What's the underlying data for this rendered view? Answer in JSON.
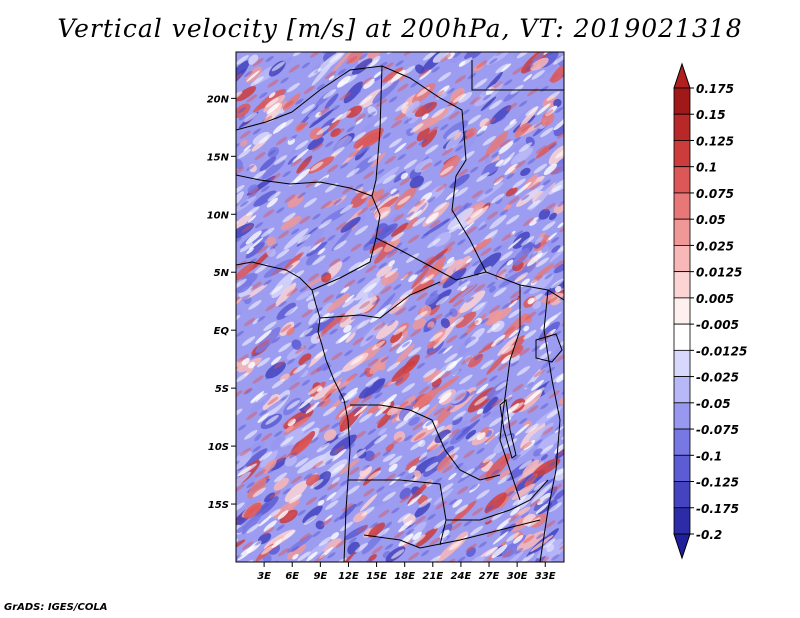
{
  "title": "Vertical velocity [m/s] at 200hPa, VT: 2019021318",
  "footer": "GrADS: IGES/COLA",
  "map": {
    "lon_range": [
      0,
      35
    ],
    "lat_range": [
      -20,
      24
    ],
    "lat_ticks": [
      {
        "value": 20,
        "label": "20N"
      },
      {
        "value": 15,
        "label": "15N"
      },
      {
        "value": 10,
        "label": "10N"
      },
      {
        "value": 5,
        "label": "5N"
      },
      {
        "value": 0,
        "label": "EQ"
      },
      {
        "value": -5,
        "label": "5S"
      },
      {
        "value": -10,
        "label": "10S"
      },
      {
        "value": -15,
        "label": "15S"
      }
    ],
    "lon_ticks": [
      {
        "value": 3,
        "label": "3E"
      },
      {
        "value": 6,
        "label": "6E"
      },
      {
        "value": 9,
        "label": "9E"
      },
      {
        "value": 12,
        "label": "12E"
      },
      {
        "value": 15,
        "label": "15E"
      },
      {
        "value": 18,
        "label": "18E"
      },
      {
        "value": 21,
        "label": "21E"
      },
      {
        "value": 24,
        "label": "24E"
      },
      {
        "value": 27,
        "label": "27E"
      },
      {
        "value": 30,
        "label": "30E"
      },
      {
        "value": 33,
        "label": "33E"
      }
    ]
  },
  "colorbar": {
    "levels": [
      {
        "label": "0.175",
        "color": "#a01818"
      },
      {
        "label": "0.15",
        "color": "#b82828"
      },
      {
        "label": "0.125",
        "color": "#cc3c3c"
      },
      {
        "label": "0.1",
        "color": "#dc5858"
      },
      {
        "label": "0.075",
        "color": "#e87878"
      },
      {
        "label": "0.05",
        "color": "#f09898"
      },
      {
        "label": "0.025",
        "color": "#f8b8b8"
      },
      {
        "label": "0.0125",
        "color": "#fcd4d4"
      },
      {
        "label": "0.005",
        "color": "#fff0f0"
      },
      {
        "label": "-0.005",
        "color": "#ffffff"
      },
      {
        "label": "-0.0125",
        "color": "#d8d8fc"
      },
      {
        "label": "-0.025",
        "color": "#b8b8f8"
      },
      {
        "label": "-0.05",
        "color": "#9898f0"
      },
      {
        "label": "-0.075",
        "color": "#7878e4"
      },
      {
        "label": "-0.1",
        "color": "#5c5cd4"
      },
      {
        "label": "-0.125",
        "color": "#4444c0"
      },
      {
        "label": "-0.175",
        "color": "#2c2ca8"
      },
      {
        "label": "-0.2",
        "color": "#181890"
      }
    ],
    "top_color": "#b02020",
    "bottom_color": "#20209c"
  }
}
